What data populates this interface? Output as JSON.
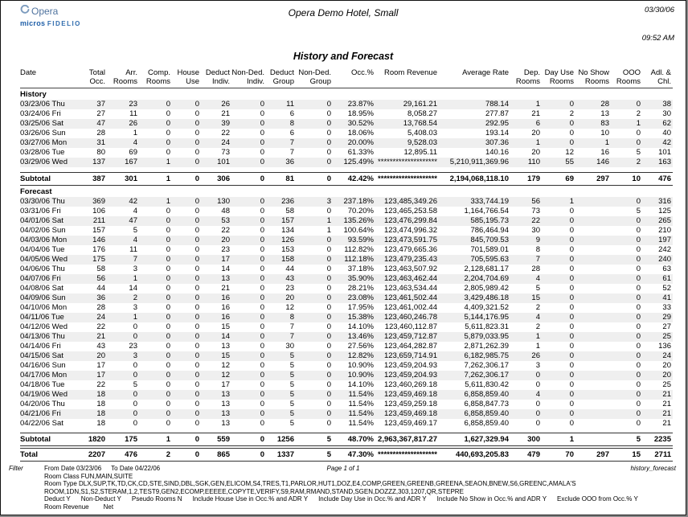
{
  "page": {
    "logo": {
      "brand": "Opera",
      "micros": "micros",
      "fidelio": "FIDELIO",
      "brand_color": "#2f6cae"
    },
    "header": {
      "hotel_name": "Opera Demo Hotel, Small",
      "date": "03/30/06",
      "time": "09:52 AM"
    },
    "report_title": "History and Forecast"
  },
  "table": {
    "columns": [
      {
        "key": "date",
        "line1": "Date",
        "line2": "",
        "align": "left"
      },
      {
        "key": "total_occ",
        "line1": "Total",
        "line2": "Occ.",
        "align": "right"
      },
      {
        "key": "arr_rooms",
        "line1": "Arr.",
        "line2": "Rooms",
        "align": "right"
      },
      {
        "key": "comp_rooms",
        "line1": "Comp.",
        "line2": "Rooms",
        "align": "right"
      },
      {
        "key": "house_use",
        "line1": "House",
        "line2": "Use",
        "align": "right"
      },
      {
        "key": "deduct_indiv",
        "line1": "Deduct",
        "line2": "Indiv.",
        "align": "right"
      },
      {
        "key": "non_ded_indiv",
        "line1": "Non-Ded.",
        "line2": "Indiv.",
        "align": "right"
      },
      {
        "key": "deduct_group",
        "line1": "Deduct",
        "line2": "Group",
        "align": "right"
      },
      {
        "key": "non_ded_group",
        "line1": "Non-Ded.",
        "line2": "Group",
        "align": "right"
      },
      {
        "key": "occ_pct",
        "line1": "Occ.%",
        "line2": "",
        "align": "right"
      },
      {
        "key": "room_revenue",
        "line1": "Room Revenue",
        "line2": "",
        "align": "right"
      },
      {
        "key": "average_rate",
        "line1": "Average Rate",
        "line2": "",
        "align": "right"
      },
      {
        "key": "dep_rooms",
        "line1": "Dep.",
        "line2": "Rooms",
        "align": "right"
      },
      {
        "key": "day_use_rooms",
        "line1": "Day Use",
        "line2": "Rooms",
        "align": "right"
      },
      {
        "key": "no_show_rooms",
        "line1": "No Show",
        "line2": "Rooms",
        "align": "right"
      },
      {
        "key": "ooo_rooms",
        "line1": "OOO",
        "line2": "Rooms",
        "align": "right"
      },
      {
        "key": "adl_chl",
        "line1": "Adl. &",
        "line2": "Chl.",
        "align": "right"
      }
    ],
    "sections": [
      {
        "label": "History",
        "rows": [
          [
            "03/23/06 Thu",
            "37",
            "23",
            "0",
            "0",
            "26",
            "0",
            "11",
            "0",
            "23.87%",
            "29,161.21",
            "788.14",
            "1",
            "0",
            "28",
            "0",
            "38"
          ],
          [
            "03/24/06 Fri",
            "27",
            "11",
            "0",
            "0",
            "21",
            "0",
            "6",
            "0",
            "18.95%",
            "8,058.27",
            "277.87",
            "21",
            "2",
            "13",
            "2",
            "30"
          ],
          [
            "03/25/06 Sat",
            "47",
            "26",
            "0",
            "0",
            "39",
            "0",
            "8",
            "0",
            "30.52%",
            "13,768.54",
            "292.95",
            "6",
            "0",
            "83",
            "1",
            "62"
          ],
          [
            "03/26/06 Sun",
            "28",
            "1",
            "0",
            "0",
            "22",
            "0",
            "6",
            "0",
            "18.06%",
            "5,408.03",
            "193.14",
            "20",
            "0",
            "10",
            "0",
            "40"
          ],
          [
            "03/27/06 Mon",
            "31",
            "4",
            "0",
            "0",
            "24",
            "0",
            "7",
            "0",
            "20.00%",
            "9,528.03",
            "307.36",
            "1",
            "0",
            "1",
            "0",
            "42"
          ],
          [
            "03/28/06 Tue",
            "80",
            "69",
            "0",
            "0",
            "73",
            "0",
            "7",
            "0",
            "61.33%",
            "12,895.11",
            "140.16",
            "20",
            "12",
            "16",
            "5",
            "101"
          ],
          [
            "03/29/06 Wed",
            "137",
            "167",
            "1",
            "0",
            "101",
            "0",
            "36",
            "0",
            "125.49%",
            "********************",
            "5,210,911,369.96",
            "110",
            "55",
            "146",
            "2",
            "163"
          ]
        ],
        "subtotal": [
          "Subtotal",
          "387",
          "301",
          "1",
          "0",
          "306",
          "0",
          "81",
          "0",
          "42.42%",
          "********************",
          "2,194,068,118.10",
          "179",
          "69",
          "297",
          "10",
          "476"
        ]
      },
      {
        "label": "Forecast",
        "rows": [
          [
            "03/30/06 Thu",
            "369",
            "42",
            "1",
            "0",
            "130",
            "0",
            "236",
            "3",
            "237.18%",
            "123,485,349.26",
            "333,744.19",
            "56",
            "1",
            "",
            "0",
            "316"
          ],
          [
            "03/31/06 Fri",
            "106",
            "4",
            "0",
            "0",
            "48",
            "0",
            "58",
            "0",
            "70.20%",
            "123,465,253.58",
            "1,164,766.54",
            "73",
            "0",
            "",
            "5",
            "125"
          ],
          [
            "04/01/06 Sat",
            "211",
            "47",
            "0",
            "0",
            "53",
            "0",
            "157",
            "1",
            "135.26%",
            "123,476,299.84",
            "585,195.73",
            "22",
            "0",
            "",
            "0",
            "265"
          ],
          [
            "04/02/06 Sun",
            "157",
            "5",
            "0",
            "0",
            "22",
            "0",
            "134",
            "1",
            "100.64%",
            "123,474,996.32",
            "786,464.94",
            "30",
            "0",
            "",
            "0",
            "210"
          ],
          [
            "04/03/06 Mon",
            "146",
            "4",
            "0",
            "0",
            "20",
            "0",
            "126",
            "0",
            "93.59%",
            "123,473,591.75",
            "845,709.53",
            "9",
            "0",
            "",
            "0",
            "197"
          ],
          [
            "04/04/06 Tue",
            "176",
            "11",
            "0",
            "0",
            "23",
            "0",
            "153",
            "0",
            "112.82%",
            "123,479,665.36",
            "701,589.01",
            "8",
            "0",
            "",
            "0",
            "242"
          ],
          [
            "04/05/06 Wed",
            "175",
            "7",
            "0",
            "0",
            "17",
            "0",
            "158",
            "0",
            "112.18%",
            "123,479,235.43",
            "705,595.63",
            "7",
            "0",
            "",
            "0",
            "240"
          ],
          [
            "04/06/06 Thu",
            "58",
            "3",
            "0",
            "0",
            "14",
            "0",
            "44",
            "0",
            "37.18%",
            "123,463,507.92",
            "2,128,681.17",
            "28",
            "0",
            "",
            "0",
            "63"
          ],
          [
            "04/07/06 Fri",
            "56",
            "1",
            "0",
            "0",
            "13",
            "0",
            "43",
            "0",
            "35.90%",
            "123,463,462.44",
            "2,204,704.69",
            "4",
            "0",
            "",
            "0",
            "61"
          ],
          [
            "04/08/06 Sat",
            "44",
            "14",
            "0",
            "0",
            "21",
            "0",
            "23",
            "0",
            "28.21%",
            "123,463,534.44",
            "2,805,989.42",
            "5",
            "0",
            "",
            "0",
            "52"
          ],
          [
            "04/09/06 Sun",
            "36",
            "2",
            "0",
            "0",
            "16",
            "0",
            "20",
            "0",
            "23.08%",
            "123,461,502.44",
            "3,429,486.18",
            "15",
            "0",
            "",
            "0",
            "41"
          ],
          [
            "04/10/06 Mon",
            "28",
            "3",
            "0",
            "0",
            "16",
            "0",
            "12",
            "0",
            "17.95%",
            "123,461,002.44",
            "4,409,321.52",
            "2",
            "0",
            "",
            "0",
            "33"
          ],
          [
            "04/11/06 Tue",
            "24",
            "1",
            "0",
            "0",
            "16",
            "0",
            "8",
            "0",
            "15.38%",
            "123,460,246.78",
            "5,144,176.95",
            "4",
            "0",
            "",
            "0",
            "29"
          ],
          [
            "04/12/06 Wed",
            "22",
            "0",
            "0",
            "0",
            "15",
            "0",
            "7",
            "0",
            "14.10%",
            "123,460,112.87",
            "5,611,823.31",
            "2",
            "0",
            "",
            "0",
            "27"
          ],
          [
            "04/13/06 Thu",
            "21",
            "0",
            "0",
            "0",
            "14",
            "0",
            "7",
            "0",
            "13.46%",
            "123,459,712.87",
            "5,879,033.95",
            "1",
            "0",
            "",
            "0",
            "25"
          ],
          [
            "04/14/06 Fri",
            "43",
            "23",
            "0",
            "0",
            "13",
            "0",
            "30",
            "0",
            "27.56%",
            "123,464,282.87",
            "2,871,262.39",
            "1",
            "0",
            "",
            "0",
            "136"
          ],
          [
            "04/15/06 Sat",
            "20",
            "3",
            "0",
            "0",
            "15",
            "0",
            "5",
            "0",
            "12.82%",
            "123,659,714.91",
            "6,182,985.75",
            "26",
            "0",
            "",
            "0",
            "24"
          ],
          [
            "04/16/06 Sun",
            "17",
            "0",
            "0",
            "0",
            "12",
            "0",
            "5",
            "0",
            "10.90%",
            "123,459,204.93",
            "7,262,306.17",
            "3",
            "0",
            "",
            "0",
            "20"
          ],
          [
            "04/17/06 Mon",
            "17",
            "0",
            "0",
            "0",
            "12",
            "0",
            "5",
            "0",
            "10.90%",
            "123,459,204.93",
            "7,262,306.17",
            "0",
            "0",
            "",
            "0",
            "20"
          ],
          [
            "04/18/06 Tue",
            "22",
            "5",
            "0",
            "0",
            "17",
            "0",
            "5",
            "0",
            "14.10%",
            "123,460,269.18",
            "5,611,830.42",
            "0",
            "0",
            "",
            "0",
            "25"
          ],
          [
            "04/19/06 Wed",
            "18",
            "0",
            "0",
            "0",
            "13",
            "0",
            "5",
            "0",
            "11.54%",
            "123,459,469.18",
            "6,858,859.40",
            "4",
            "0",
            "",
            "0",
            "21"
          ],
          [
            "04/20/06 Thu",
            "18",
            "0",
            "0",
            "0",
            "13",
            "0",
            "5",
            "0",
            "11.54%",
            "123,459,259.18",
            "6,858,847.73",
            "0",
            "0",
            "",
            "0",
            "21"
          ],
          [
            "04/21/06 Fri",
            "18",
            "0",
            "0",
            "0",
            "13",
            "0",
            "5",
            "0",
            "11.54%",
            "123,459,469.18",
            "6,858,859.40",
            "0",
            "0",
            "",
            "0",
            "21"
          ],
          [
            "04/22/06 Sat",
            "18",
            "0",
            "0",
            "0",
            "13",
            "0",
            "5",
            "0",
            "11.54%",
            "123,459,469.17",
            "6,858,859.40",
            "0",
            "0",
            "",
            "0",
            "21"
          ]
        ],
        "subtotal": [
          "Subtotal",
          "1820",
          "175",
          "1",
          "0",
          "559",
          "0",
          "1256",
          "5",
          "48.70%",
          "2,963,367,817.27",
          "1,627,329.94",
          "300",
          "1",
          "",
          "5",
          "2235"
        ]
      }
    ],
    "total": [
      "Total",
      "2207",
      "476",
      "2",
      "0",
      "865",
      "0",
      "1337",
      "5",
      "47.30%",
      "********************",
      "440,693,205.83",
      "479",
      "70",
      "297",
      "15",
      "2711"
    ]
  },
  "footer": {
    "filter_label": "Filter",
    "from_date": "From Date 03/23/06",
    "to_date": "To Date 04/22/06",
    "page": "Page 1 of 1",
    "report_file": "history_forecast",
    "room_class": "Room Class FUN,MAIN,SUITE",
    "room_type_lines": [
      "Room Type DLX,SUP,TK,TD,CK,CD,STE,SIND,DBL,SGK,GEN,ELICOM,S4,TRES,T1,PARLOR,HUT1,DOZ,E4,COMP,GREEN,GREENB,GREENA,SEAON,BNEW,S6,GREENC,AMALA'S",
      "ROOM,1DN,S1,S2,STERAM,1,2,TEST9,GEN2,ECOMP,EEEEE,COPYTE,VERIFY,S9,RAM,RMAND,STAND,SGEN,DOZZZ,303,1207,QR,STEPRE"
    ],
    "options": [
      "Deduct Y",
      "Non-Deduct Y",
      "Pseudo Rooms N",
      "Include House Use in Occ.% and ADR Y",
      "Include Day Use in Occ.% and ADR Y",
      "Include No Show in Occ.% and ADR Y",
      "Exclude OOO from Occ.% Y"
    ],
    "revenue_label": "Room Revenue",
    "revenue_value": "Net"
  }
}
